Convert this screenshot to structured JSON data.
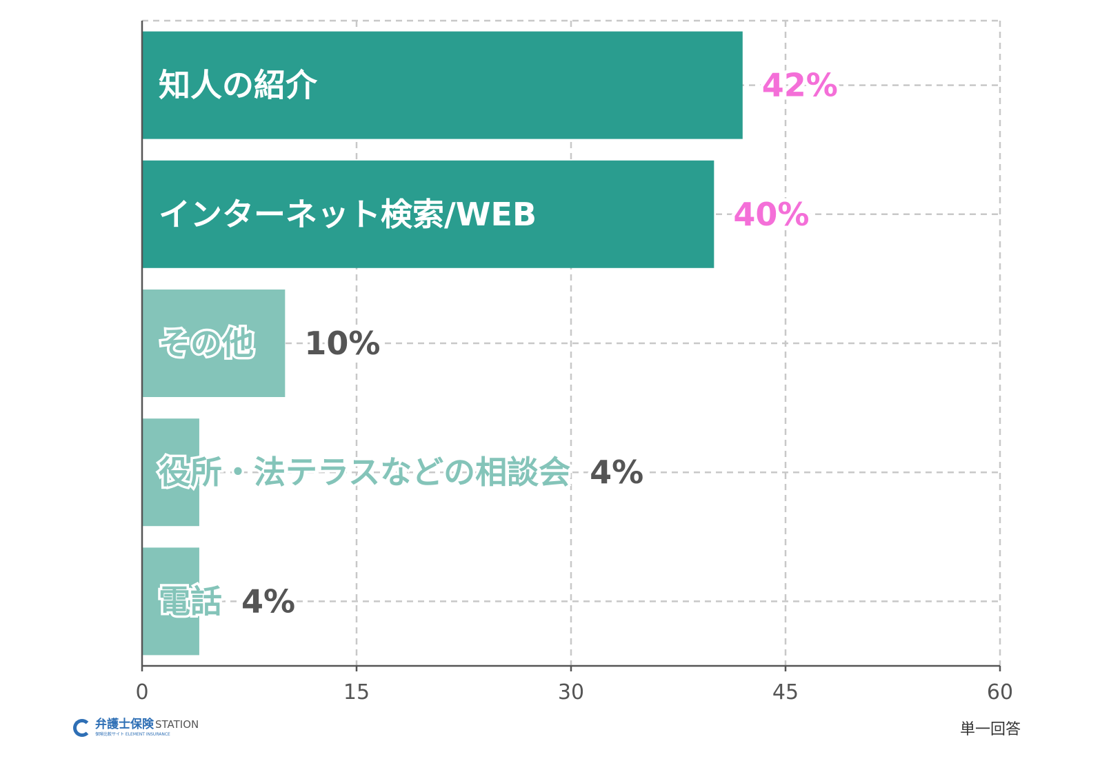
{
  "chart_data": {
    "type": "bar",
    "orientation": "horizontal",
    "categories": [
      "知人の紹介",
      "インターネット検索/WEB",
      "その他",
      "役所・法テラスなどの相談会",
      "電話"
    ],
    "values": [
      42,
      40,
      10,
      4,
      4
    ],
    "value_labels": [
      "42%",
      "40%",
      "10%",
      "4%",
      "4%"
    ],
    "xlim": [
      0,
      60
    ],
    "xticks": [
      "0",
      "15",
      "30",
      "45",
      "60"
    ],
    "grid": true,
    "highlight_colors": [
      "#2a9d8f",
      "#2a9d8f",
      "#84c4b9",
      "#84c4b9",
      "#84c4b9"
    ],
    "label_colors": [
      "#f46fd8",
      "#f46fd8",
      "#555555",
      "#555555",
      "#555555"
    ]
  },
  "footer": {
    "note": "単一回答",
    "logo_main": "弁護士保険",
    "logo_station": "STATION",
    "logo_sub": "保険比較サイト  ELEMENT INSURANCE"
  },
  "colors": {
    "dark_bar": "#2a9d8f",
    "light_bar": "#84c4b9",
    "highlight_text": "#f46fd8",
    "normal_text": "#555555",
    "grid": "#c8c8c8"
  }
}
